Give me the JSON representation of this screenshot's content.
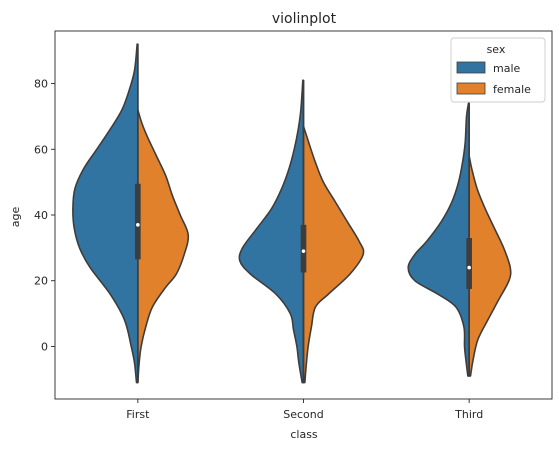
{
  "chart_data": {
    "type": "violin",
    "title": "violinplot",
    "xlabel": "class",
    "ylabel": "age",
    "categories": [
      "First",
      "Second",
      "Third"
    ],
    "ylim": [
      -16,
      96
    ],
    "yticks": [
      0,
      20,
      40,
      60,
      80
    ],
    "split": true,
    "grid": false,
    "legend": {
      "title": "sex",
      "placement": "top-right",
      "entries": [
        {
          "name": "male",
          "color": "#3274a1"
        },
        {
          "name": "female",
          "color": "#e1812c"
        }
      ]
    },
    "series": [
      {
        "name": "male",
        "color": "#3274a1",
        "profiles": [
          [
            [
              -11,
              0.02
            ],
            [
              -5,
              0.05
            ],
            [
              0,
              0.1
            ],
            [
              8,
              0.2
            ],
            [
              16,
              0.42
            ],
            [
              24,
              0.72
            ],
            [
              30,
              0.88
            ],
            [
              36,
              0.96
            ],
            [
              42,
              0.98
            ],
            [
              48,
              0.95
            ],
            [
              54,
              0.82
            ],
            [
              60,
              0.62
            ],
            [
              66,
              0.42
            ],
            [
              72,
              0.24
            ],
            [
              78,
              0.13
            ],
            [
              84,
              0.05
            ],
            [
              92,
              0.01
            ]
          ],
          [
            [
              -11,
              0.02
            ],
            [
              -5,
              0.07
            ],
            [
              0,
              0.1
            ],
            [
              5,
              0.15
            ],
            [
              10,
              0.2
            ],
            [
              16,
              0.42
            ],
            [
              22,
              0.8
            ],
            [
              26,
              0.96
            ],
            [
              30,
              0.92
            ],
            [
              36,
              0.7
            ],
            [
              42,
              0.48
            ],
            [
              48,
              0.33
            ],
            [
              54,
              0.22
            ],
            [
              60,
              0.14
            ],
            [
              66,
              0.08
            ],
            [
              72,
              0.04
            ],
            [
              81,
              0.01
            ]
          ],
          [
            [
              -9,
              0.02
            ],
            [
              -4,
              0.05
            ],
            [
              0,
              0.07
            ],
            [
              6,
              0.08
            ],
            [
              12,
              0.2
            ],
            [
              16,
              0.48
            ],
            [
              20,
              0.82
            ],
            [
              24,
              0.92
            ],
            [
              28,
              0.82
            ],
            [
              32,
              0.64
            ],
            [
              38,
              0.42
            ],
            [
              44,
              0.26
            ],
            [
              50,
              0.16
            ],
            [
              56,
              0.1
            ],
            [
              62,
              0.06
            ],
            [
              70,
              0.04
            ],
            [
              74,
              0.01
            ]
          ]
        ]
      },
      {
        "name": "female",
        "color": "#e1812c",
        "profiles": [
          [
            [
              -11,
              0.0
            ],
            [
              -5,
              0.02
            ],
            [
              0,
              0.05
            ],
            [
              6,
              0.12
            ],
            [
              12,
              0.22
            ],
            [
              18,
              0.42
            ],
            [
              22,
              0.58
            ],
            [
              28,
              0.7
            ],
            [
              34,
              0.76
            ],
            [
              40,
              0.64
            ],
            [
              46,
              0.52
            ],
            [
              52,
              0.42
            ],
            [
              58,
              0.28
            ],
            [
              64,
              0.14
            ],
            [
              68,
              0.06
            ],
            [
              72,
              0.0
            ]
          ],
          [
            [
              -11,
              0.02
            ],
            [
              -6,
              0.04
            ],
            [
              0,
              0.07
            ],
            [
              6,
              0.12
            ],
            [
              12,
              0.18
            ],
            [
              16,
              0.38
            ],
            [
              22,
              0.7
            ],
            [
              28,
              0.9
            ],
            [
              32,
              0.84
            ],
            [
              38,
              0.66
            ],
            [
              44,
              0.48
            ],
            [
              50,
              0.3
            ],
            [
              56,
              0.18
            ],
            [
              62,
              0.08
            ],
            [
              67,
              0.0
            ]
          ],
          [
            [
              -9,
              0.02
            ],
            [
              -4,
              0.06
            ],
            [
              2,
              0.13
            ],
            [
              8,
              0.28
            ],
            [
              14,
              0.44
            ],
            [
              20,
              0.6
            ],
            [
              24,
              0.62
            ],
            [
              30,
              0.52
            ],
            [
              36,
              0.38
            ],
            [
              42,
              0.24
            ],
            [
              48,
              0.12
            ],
            [
              54,
              0.04
            ],
            [
              58,
              0.0
            ]
          ]
        ]
      }
    ],
    "box": [
      {
        "q1": 26.5,
        "median": 37,
        "q3": 49.5
      },
      {
        "q1": 22.5,
        "median": 29,
        "q3": 37
      },
      {
        "q1": 17.5,
        "median": 24,
        "q3": 33
      }
    ],
    "whisker_range": [
      [
        -11,
        92
      ],
      [
        -11,
        81
      ],
      [
        -9,
        74
      ]
    ]
  }
}
